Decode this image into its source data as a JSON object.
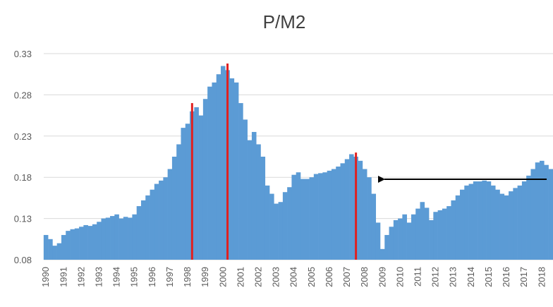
{
  "chart_data": {
    "type": "bar",
    "title": "P/M2",
    "categories": [
      "1990",
      null,
      null,
      null,
      "1991",
      null,
      null,
      null,
      "1992",
      null,
      null,
      null,
      "1993",
      null,
      null,
      null,
      "1994",
      null,
      null,
      null,
      "1995",
      null,
      null,
      null,
      "1996",
      null,
      null,
      null,
      "1997",
      null,
      null,
      null,
      "1998",
      null,
      null,
      null,
      "1999",
      null,
      null,
      null,
      "2000",
      null,
      null,
      null,
      "2001",
      null,
      null,
      null,
      "2002",
      null,
      null,
      null,
      "2003",
      null,
      null,
      null,
      "2004",
      null,
      null,
      null,
      "2005",
      null,
      null,
      null,
      "2006",
      null,
      null,
      null,
      "2007",
      null,
      null,
      null,
      "2008",
      null,
      null,
      null,
      "2009",
      null,
      null,
      null,
      "2010",
      null,
      null,
      null,
      "2011",
      null,
      null,
      null,
      "2012",
      null,
      null,
      null,
      "2013",
      null,
      null,
      null,
      "2014",
      null,
      null,
      null,
      "2015",
      null,
      null,
      null,
      "2016",
      null,
      null,
      null,
      "2017",
      null,
      null,
      null,
      "2018",
      null,
      null
    ],
    "series": [
      {
        "color": "#5b9bd5",
        "values": [
          0.11,
          0.105,
          0.097,
          0.1,
          0.11,
          0.115,
          0.117,
          0.118,
          0.12,
          0.122,
          0.121,
          0.123,
          0.126,
          0.13,
          0.131,
          0.133,
          0.135,
          0.13,
          0.132,
          0.131,
          0.135,
          0.145,
          0.152,
          0.158,
          0.165,
          0.172,
          0.176,
          0.18,
          0.19,
          0.205,
          0.22,
          0.24,
          0.245,
          0.26,
          0.265,
          0.255,
          0.275,
          0.29,
          0.295,
          0.305,
          0.315,
          0.31,
          0.3,
          0.295,
          0.27,
          0.25,
          0.225,
          0.235,
          0.22,
          0.205,
          0.17,
          0.16,
          0.148,
          0.15,
          0.162,
          0.168,
          0.183,
          0.186,
          0.178,
          0.178,
          0.18,
          0.184,
          0.185,
          0.186,
          0.188,
          0.19,
          0.193,
          0.197,
          0.202,
          0.208,
          0.205,
          0.2,
          0.19,
          0.18,
          0.16,
          0.125,
          0.093,
          0.11,
          0.12,
          0.128,
          0.13,
          0.135,
          0.125,
          0.135,
          0.142,
          0.15,
          0.143,
          0.128,
          0.138,
          0.14,
          0.142,
          0.145,
          0.152,
          0.158,
          0.165,
          0.17,
          0.172,
          0.175,
          0.175,
          0.176,
          0.175,
          0.17,
          0.165,
          0.16,
          0.158,
          0.163,
          0.167,
          0.17,
          0.175,
          0.182,
          0.19,
          0.198,
          0.2,
          0.195,
          0.19
        ]
      },
      {
        "color": "#e02020",
        "values": [
          null,
          null,
          null,
          null,
          null,
          null,
          null,
          null,
          null,
          null,
          null,
          null,
          null,
          null,
          null,
          null,
          null,
          null,
          null,
          null,
          null,
          null,
          null,
          null,
          null,
          null,
          null,
          null,
          null,
          null,
          null,
          null,
          null,
          0.27,
          null,
          null,
          null,
          null,
          null,
          null,
          null,
          0.318,
          null,
          null,
          null,
          null,
          null,
          null,
          null,
          null,
          null,
          null,
          null,
          null,
          null,
          null,
          null,
          null,
          null,
          null,
          null,
          null,
          null,
          null,
          null,
          null,
          null,
          null,
          null,
          null,
          0.21,
          null,
          null,
          null,
          null,
          null,
          null,
          null,
          null,
          null,
          null,
          null,
          null,
          null,
          null,
          null,
          null,
          null,
          null,
          null,
          null,
          null,
          null,
          null,
          null,
          null,
          null,
          null,
          null,
          null,
          null,
          null,
          null,
          null,
          null,
          null,
          null,
          null,
          null,
          null,
          null,
          null,
          null,
          null,
          null
        ]
      }
    ],
    "ylim": [
      0.08,
      0.33
    ],
    "yticks": [
      0.08,
      0.13,
      0.18,
      0.23,
      0.28,
      0.33
    ],
    "grid": true
  }
}
